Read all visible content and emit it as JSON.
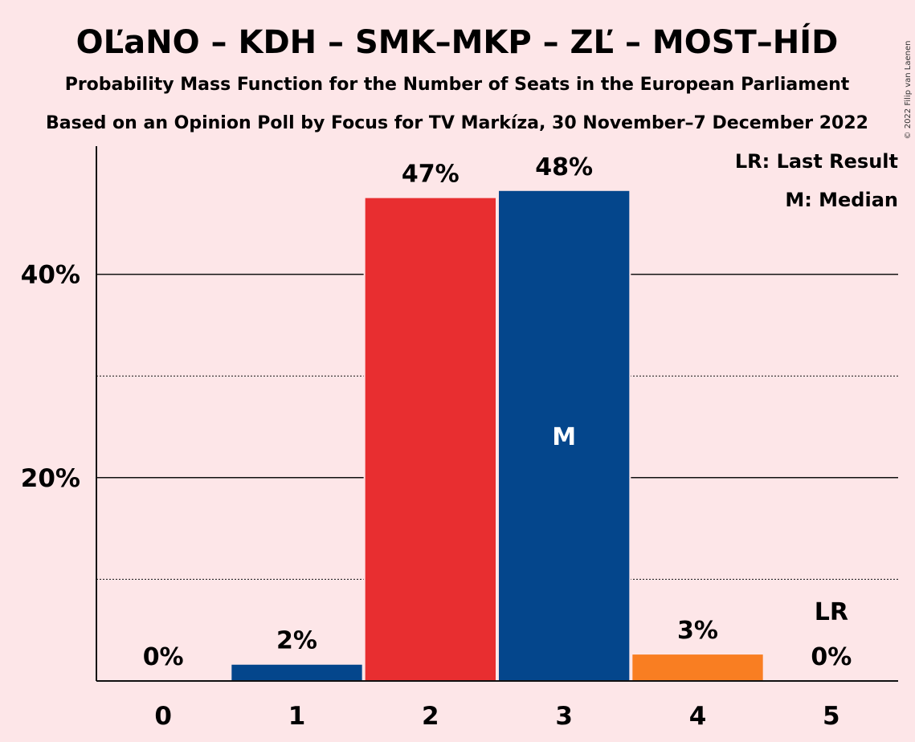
{
  "title": "OĽaNO – KDH – SMK–MKP – ZĽ – MOST–HÍD",
  "subtitle1": "Probability Mass Function for the Number of Seats in the European Parliament",
  "subtitle2": "Based on an Opinion Poll by Focus for TV Markíza, 30 November–7 December 2022",
  "copyright": "© 2022 Filip van Laenen",
  "legend": {
    "last_result": "LR: Last Result",
    "median": "M: Median"
  },
  "chart_data": {
    "type": "bar",
    "categories": [
      "0",
      "1",
      "2",
      "3",
      "4",
      "5"
    ],
    "values": [
      0,
      1.6,
      47.5,
      48.2,
      2.6,
      0
    ],
    "value_labels": [
      "0%",
      "2%",
      "47%",
      "48%",
      "3%",
      "0%"
    ],
    "bar_colors": [
      "#04468c",
      "#04468c",
      "#e82e30",
      "#04468c",
      "#f97e22",
      "#04468c"
    ],
    "ylim": [
      0,
      52
    ],
    "yticks": [
      {
        "value": 20,
        "label": "20%"
      },
      {
        "value": 40,
        "label": "40%"
      }
    ],
    "minor_gridlines": [
      10,
      30
    ],
    "median_index": 3,
    "median_marker": "M",
    "last_result_index": 5,
    "last_result_marker": "LR"
  }
}
